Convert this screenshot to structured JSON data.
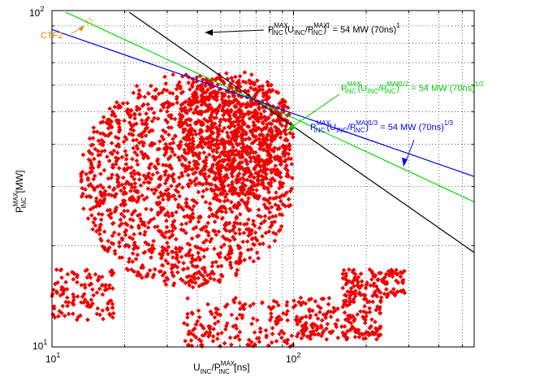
{
  "chart_data": {
    "type": "scatter",
    "title": "",
    "xlabel": "U_INC/P_INC^MAX [ns]",
    "ylabel": "P_INC^MAX [MW]",
    "xscale": "log",
    "yscale": "log",
    "xlim": [
      10,
      560
    ],
    "ylim": [
      10,
      100
    ],
    "grid": true,
    "x_ticks": [
      {
        "base": "10",
        "exp": "1"
      },
      {
        "base": "10",
        "exp": "2"
      }
    ],
    "y_ticks": [
      {
        "base": "10",
        "exp": "1"
      },
      {
        "base": "10",
        "exp": "2"
      }
    ],
    "scatter_clusters": [
      {
        "x_range": [
          13,
          100
        ],
        "y_range": [
          15,
          65
        ]
      },
      {
        "x_range": [
          33,
          100
        ],
        "y_range": [
          28,
          66
        ]
      },
      {
        "x_range": [
          10,
          18
        ],
        "y_range": [
          12,
          17
        ]
      },
      {
        "x_range": [
          100,
          230
        ],
        "y_range": [
          10.5,
          14
        ]
      },
      {
        "x_range": [
          160,
          290
        ],
        "y_range": [
          14,
          17
        ]
      },
      {
        "x_range": [
          35,
          100
        ],
        "y_range": [
          10,
          14
        ]
      }
    ],
    "series": [
      {
        "name": "P_INC^MAX (U_INC/P_INC^MAX)^1 = 54 MW (70ns)^1",
        "color": "#000000",
        "exponent": 1,
        "constant_mw": 54,
        "ref_ns": 70
      },
      {
        "name": "P_INC^MAX (U_INC/P_INC^MAX)^1/2 = 54 MW (70ns)^1/2",
        "color": "#00dd00",
        "exponent": 0.5,
        "constant_mw": 54,
        "ref_ns": 70
      },
      {
        "name": "P_INC^MAX (U_INC/P_INC^MAX)^1/3 = 54 MW (70ns)^1/3",
        "color": "#0000ee",
        "exponent": 0.3333,
        "constant_mw": 54,
        "ref_ns": 70
      }
    ],
    "points": [
      {
        "label": "CTF2",
        "x": 16.5,
        "y": 90,
        "color": "#dd8800",
        "marker": "star"
      }
    ],
    "scatter_color": "#ee0000"
  }
}
